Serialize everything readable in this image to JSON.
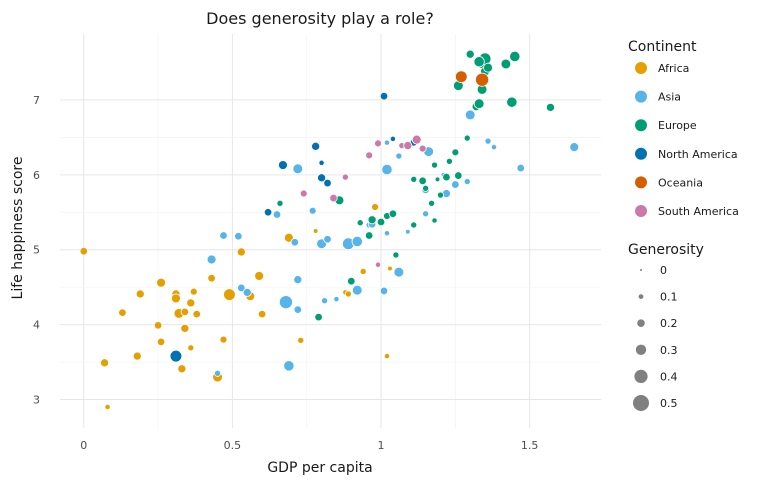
{
  "chart_data": {
    "type": "scatter",
    "title": "Does generosity play a role?",
    "xlabel": "GDP per capita",
    "ylabel": "Life happiness score",
    "xlim": [
      -0.08,
      1.74
    ],
    "ylim": [
      2.62,
      7.88
    ],
    "xticks": [
      0,
      0.5,
      1,
      1.5
    ],
    "xtick_labels": [
      "0",
      "0.5",
      "1",
      "1.5"
    ],
    "yticks": [
      3,
      4,
      5,
      6,
      7
    ],
    "ytick_labels": [
      "3",
      "4",
      "5",
      "6",
      "7"
    ],
    "grid": true,
    "legend_placement": "right",
    "color_legend": {
      "title": "Continent",
      "entries": [
        {
          "label": "Africa",
          "color": "#E69F00"
        },
        {
          "label": "Asia",
          "color": "#56B4E9"
        },
        {
          "label": "Europe",
          "color": "#009E73"
        },
        {
          "label": "North America",
          "color": "#0072B2"
        },
        {
          "label": "Oceania",
          "color": "#D55E00"
        },
        {
          "label": "South America",
          "color": "#CC79A7"
        }
      ]
    },
    "size_legend": {
      "title": "Generosity",
      "entries": [
        {
          "label": "0",
          "value": 0
        },
        {
          "label": "0.1",
          "value": 0.1
        },
        {
          "label": "0.2",
          "value": 0.2
        },
        {
          "label": "0.3",
          "value": 0.3
        },
        {
          "label": "0.4",
          "value": 0.4
        },
        {
          "label": "0.5",
          "value": 0.5
        }
      ]
    },
    "series": [
      {
        "name": "Africa",
        "points": [
          [
            0.0,
            4.98,
            0.2
          ],
          [
            0.08,
            2.9,
            0.12
          ],
          [
            0.07,
            3.49,
            0.22
          ],
          [
            0.13,
            4.16,
            0.2
          ],
          [
            0.19,
            4.41,
            0.22
          ],
          [
            0.18,
            3.58,
            0.22
          ],
          [
            0.26,
            4.56,
            0.25
          ],
          [
            0.25,
            3.99,
            0.2
          ],
          [
            0.26,
            3.77,
            0.2
          ],
          [
            0.31,
            4.41,
            0.22
          ],
          [
            0.31,
            4.35,
            0.25
          ],
          [
            0.32,
            4.15,
            0.28
          ],
          [
            0.34,
            3.95,
            0.22
          ],
          [
            0.33,
            3.41,
            0.22
          ],
          [
            0.34,
            4.17,
            0.2
          ],
          [
            0.36,
            4.29,
            0.22
          ],
          [
            0.36,
            3.69,
            0.15
          ],
          [
            0.37,
            4.44,
            0.18
          ],
          [
            0.38,
            4.14,
            0.2
          ],
          [
            0.43,
            4.62,
            0.2
          ],
          [
            0.45,
            3.3,
            0.28
          ],
          [
            0.47,
            3.8,
            0.18
          ],
          [
            0.49,
            4.4,
            0.35
          ],
          [
            0.53,
            4.97,
            0.22
          ],
          [
            0.56,
            4.38,
            0.25
          ],
          [
            0.59,
            4.65,
            0.25
          ],
          [
            0.6,
            4.14,
            0.2
          ],
          [
            0.69,
            5.16,
            0.25
          ],
          [
            0.73,
            3.79,
            0.15
          ],
          [
            0.78,
            5.25,
            0.1
          ],
          [
            0.88,
            4.43,
            0.12
          ],
          [
            0.9,
            4.58,
            0.15
          ],
          [
            0.94,
            4.71,
            0.15
          ],
          [
            0.98,
            5.57,
            0.18
          ],
          [
            1.02,
            3.58,
            0.12
          ],
          [
            1.03,
            4.75,
            0.1
          ],
          [
            0.89,
            4.41,
            0.15
          ]
        ]
      },
      {
        "name": "Asia",
        "points": [
          [
            0.45,
            3.35,
            0.15
          ],
          [
            0.43,
            4.87,
            0.25
          ],
          [
            0.47,
            5.19,
            0.2
          ],
          [
            0.52,
            5.18,
            0.2
          ],
          [
            0.53,
            4.49,
            0.2
          ],
          [
            0.55,
            4.43,
            0.22
          ],
          [
            0.65,
            5.47,
            0.2
          ],
          [
            0.68,
            4.3,
            0.4
          ],
          [
            0.69,
            3.45,
            0.3
          ],
          [
            0.71,
            5.1,
            0.2
          ],
          [
            0.72,
            4.2,
            0.2
          ],
          [
            0.72,
            4.6,
            0.22
          ],
          [
            0.72,
            6.08,
            0.28
          ],
          [
            0.77,
            5.52,
            0.18
          ],
          [
            0.8,
            5.08,
            0.28
          ],
          [
            0.81,
            4.32,
            0.15
          ],
          [
            0.82,
            5.14,
            0.2
          ],
          [
            0.85,
            4.34,
            0.12
          ],
          [
            0.89,
            5.08,
            0.35
          ],
          [
            0.92,
            5.11,
            0.3
          ],
          [
            0.92,
            4.46,
            0.28
          ],
          [
            0.96,
            5.33,
            0.15
          ],
          [
            0.97,
            5.34,
            0.2
          ],
          [
            1.01,
            4.45,
            0.2
          ],
          [
            1.02,
            5.22,
            0.12
          ],
          [
            1.02,
            6.07,
            0.3
          ],
          [
            1.06,
            4.7,
            0.28
          ],
          [
            1.06,
            6.25,
            0.15
          ],
          [
            1.09,
            5.24,
            0.1
          ],
          [
            1.15,
            5.8,
            0.2
          ],
          [
            1.15,
            5.48,
            0.15
          ],
          [
            1.16,
            6.31,
            0.28
          ],
          [
            1.22,
            5.75,
            0.22
          ],
          [
            1.25,
            5.87,
            0.2
          ],
          [
            1.29,
            5.91,
            0.15
          ],
          [
            1.3,
            6.8,
            0.28
          ],
          [
            1.36,
            6.45,
            0.15
          ],
          [
            1.38,
            6.37,
            0.12
          ],
          [
            1.47,
            6.09,
            0.2
          ],
          [
            1.65,
            6.37,
            0.25
          ],
          [
            1.02,
            6.43,
            0.12
          ],
          [
            1.21,
            6.0,
            0.1
          ]
        ]
      },
      {
        "name": "Europe",
        "points": [
          [
            0.66,
            5.62,
            0.15
          ],
          [
            0.79,
            4.1,
            0.2
          ],
          [
            0.86,
            5.66,
            0.25
          ],
          [
            0.9,
            4.58,
            0.2
          ],
          [
            0.93,
            5.36,
            0.15
          ],
          [
            0.96,
            5.19,
            0.2
          ],
          [
            0.97,
            5.4,
            0.22
          ],
          [
            1.0,
            5.37,
            0.2
          ],
          [
            1.02,
            5.45,
            0.18
          ],
          [
            1.04,
            5.48,
            0.2
          ],
          [
            1.05,
            4.93,
            0.15
          ],
          [
            1.11,
            5.33,
            0.15
          ],
          [
            1.11,
            5.94,
            0.15
          ],
          [
            1.14,
            5.92,
            0.2
          ],
          [
            1.15,
            5.82,
            0.15
          ],
          [
            1.17,
            5.62,
            0.15
          ],
          [
            1.18,
            6.13,
            0.15
          ],
          [
            1.18,
            5.39,
            0.12
          ],
          [
            1.19,
            5.94,
            0.1
          ],
          [
            1.2,
            5.73,
            0.15
          ],
          [
            1.22,
            5.97,
            0.2
          ],
          [
            1.23,
            6.18,
            0.15
          ],
          [
            1.25,
            6.3,
            0.18
          ],
          [
            1.26,
            5.99,
            0.2
          ],
          [
            1.26,
            7.19,
            0.28
          ],
          [
            1.29,
            6.49,
            0.15
          ],
          [
            1.3,
            7.61,
            0.22
          ],
          [
            1.32,
            6.91,
            0.22
          ],
          [
            1.33,
            6.95,
            0.28
          ],
          [
            1.34,
            7.14,
            0.28
          ],
          [
            1.34,
            7.49,
            0.3
          ],
          [
            1.35,
            7.38,
            0.25
          ],
          [
            1.35,
            7.55,
            0.35
          ],
          [
            1.36,
            7.43,
            0.25
          ],
          [
            1.42,
            7.48,
            0.28
          ],
          [
            1.44,
            6.97,
            0.3
          ],
          [
            1.45,
            7.58,
            0.3
          ],
          [
            1.57,
            6.9,
            0.22
          ],
          [
            1.33,
            7.51,
            0.3
          ]
        ]
      },
      {
        "name": "North America",
        "points": [
          [
            0.31,
            3.58,
            0.35
          ],
          [
            0.62,
            5.5,
            0.2
          ],
          [
            0.67,
            6.13,
            0.25
          ],
          [
            0.78,
            6.38,
            0.22
          ],
          [
            0.8,
            6.16,
            0.12
          ],
          [
            0.8,
            5.96,
            0.22
          ],
          [
            0.82,
            5.89,
            0.2
          ],
          [
            1.01,
            7.05,
            0.2
          ],
          [
            1.04,
            6.48,
            0.12
          ],
          [
            1.11,
            6.43,
            0.18
          ]
        ]
      },
      {
        "name": "Oceania",
        "points": [
          [
            1.27,
            7.31,
            0.35
          ],
          [
            1.34,
            7.27,
            0.4
          ]
        ]
      },
      {
        "name": "South America",
        "points": [
          [
            0.74,
            5.75,
            0.18
          ],
          [
            0.84,
            5.69,
            0.2
          ],
          [
            0.88,
            5.97,
            0.15
          ],
          [
            0.96,
            6.26,
            0.18
          ],
          [
            0.99,
            4.8,
            0.12
          ],
          [
            0.99,
            6.42,
            0.18
          ],
          [
            1.07,
            6.39,
            0.15
          ],
          [
            1.09,
            6.39,
            0.22
          ],
          [
            1.12,
            6.47,
            0.25
          ],
          [
            1.14,
            6.35,
            0.18
          ]
        ]
      }
    ]
  }
}
